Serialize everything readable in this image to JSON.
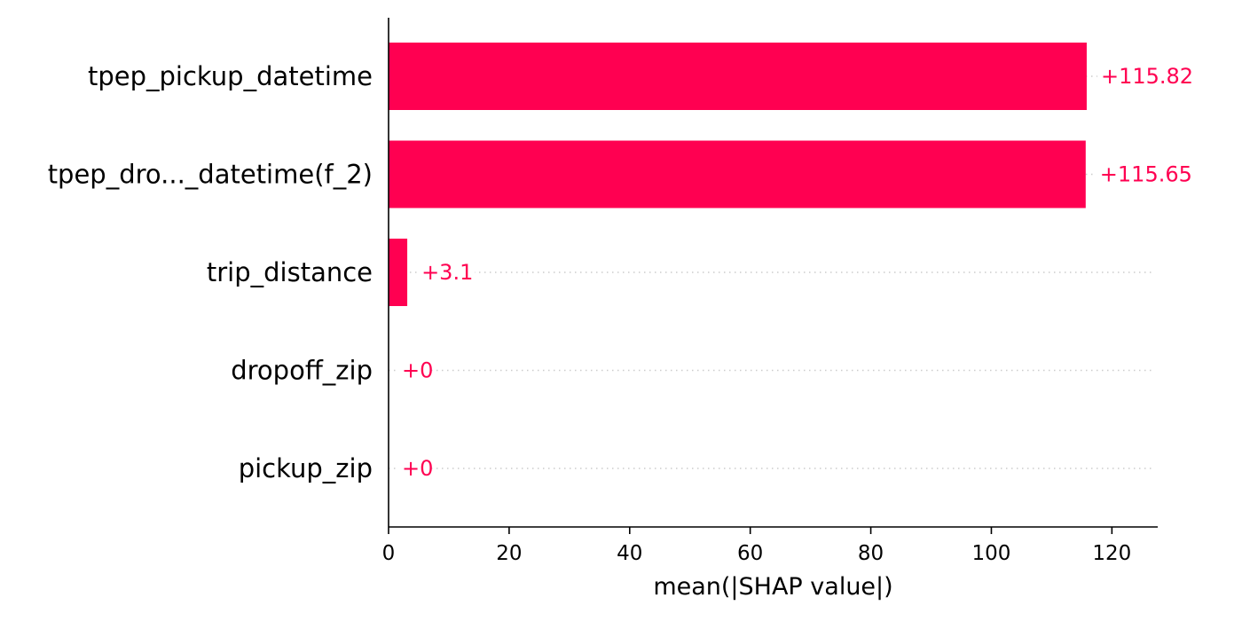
{
  "chart_data": {
    "type": "bar",
    "orientation": "horizontal",
    "categories": [
      "tpep_pickup_datetime",
      "tpep_dro..._datetime(f_2)",
      "trip_distance",
      "dropoff_zip",
      "pickup_zip"
    ],
    "values": [
      115.82,
      115.65,
      3.1,
      0,
      0
    ],
    "value_labels": [
      "+115.82",
      "+115.65",
      "+3.1",
      "+0",
      "+0"
    ],
    "title": "",
    "xlabel": "mean(|SHAP value|)",
    "ylabel": "",
    "xlim": [
      0,
      127.6
    ],
    "xticks": [
      0,
      20,
      40,
      60,
      80,
      100,
      120
    ],
    "xtick_labels": [
      "0",
      "20",
      "40",
      "60",
      "80",
      "100",
      "120"
    ],
    "grid": false,
    "guide_lines": "dotted",
    "legend": "none",
    "colors": {
      "bar": "#ff0051",
      "value_label": "#ff0051",
      "axis": "#000000",
      "guide": "#cccccc",
      "text": "#000000"
    }
  }
}
